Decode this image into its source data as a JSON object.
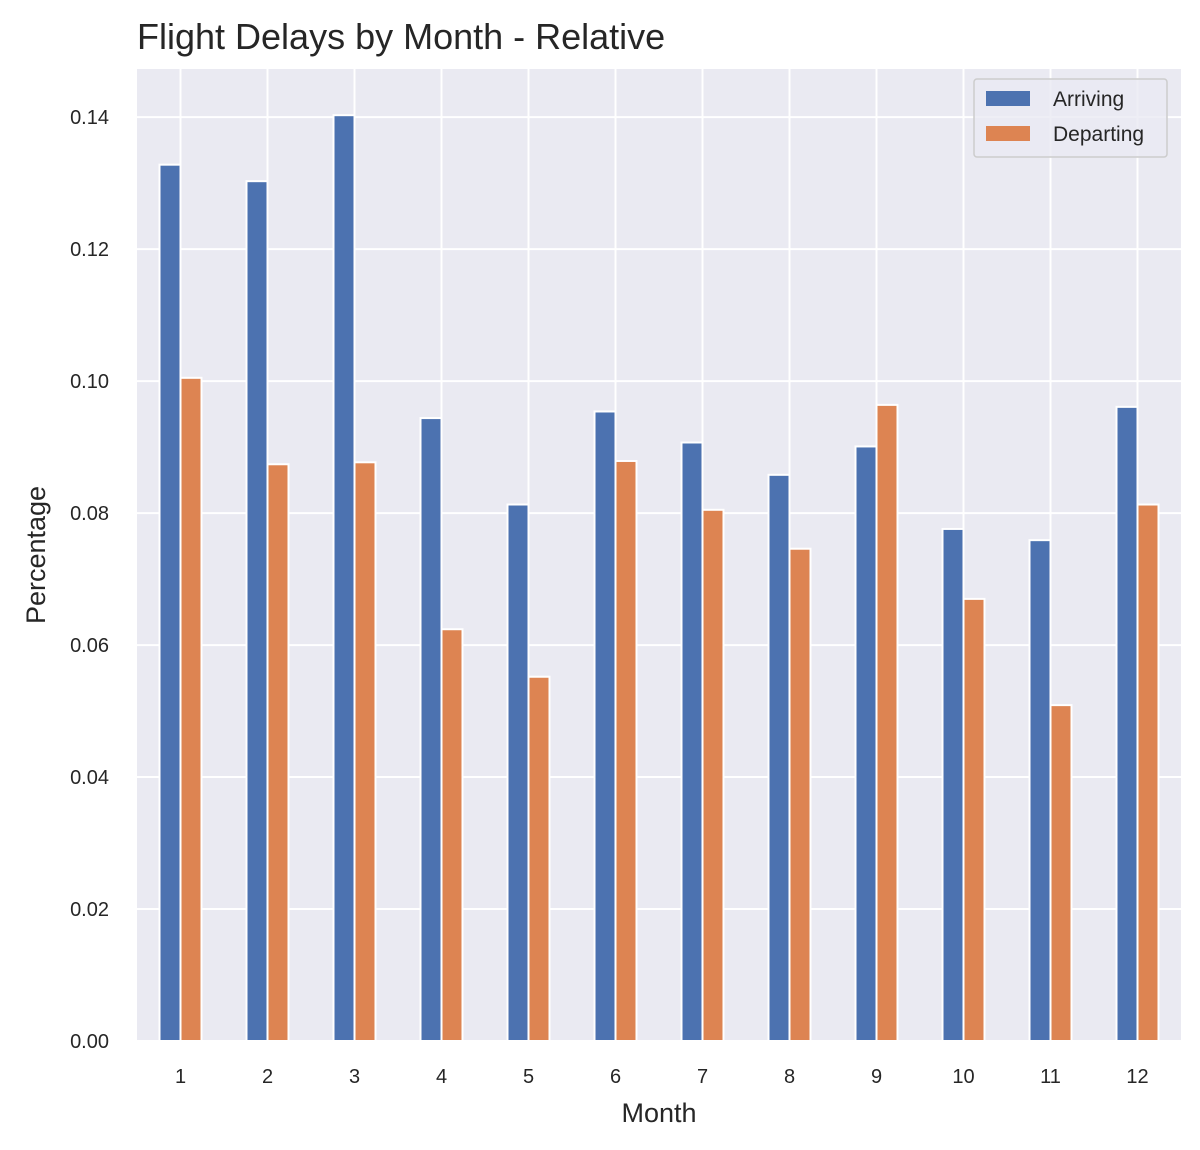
{
  "chart_data": {
    "type": "bar",
    "title": "Flight Delays by Month - Relative",
    "xlabel": "Month",
    "ylabel": "Percentage",
    "categories": [
      "1",
      "2",
      "3",
      "4",
      "5",
      "6",
      "7",
      "8",
      "9",
      "10",
      "11",
      "12"
    ],
    "series": [
      {
        "name": "Arriving",
        "color": "#4c72b0",
        "values": [
          0.1328,
          0.1303,
          0.1403,
          0.0944,
          0.0813,
          0.0954,
          0.0907,
          0.0858,
          0.0901,
          0.0776,
          0.0759,
          0.0961
        ]
      },
      {
        "name": "Departing",
        "color": "#dd8452",
        "values": [
          0.1005,
          0.0874,
          0.0877,
          0.0624,
          0.0552,
          0.0879,
          0.0805,
          0.0746,
          0.0964,
          0.067,
          0.0509,
          0.0813
        ]
      }
    ],
    "ylim": [
      0,
      0.1473
    ],
    "yticks": [
      0.0,
      0.02,
      0.04,
      0.06,
      0.08,
      0.1,
      0.12,
      0.14
    ],
    "ytick_labels": [
      "0.00",
      "0.02",
      "0.04",
      "0.06",
      "0.08",
      "0.10",
      "0.12",
      "0.14"
    ],
    "grid": true,
    "legend_position": "top-right",
    "background_color": "#eaeaf2"
  }
}
